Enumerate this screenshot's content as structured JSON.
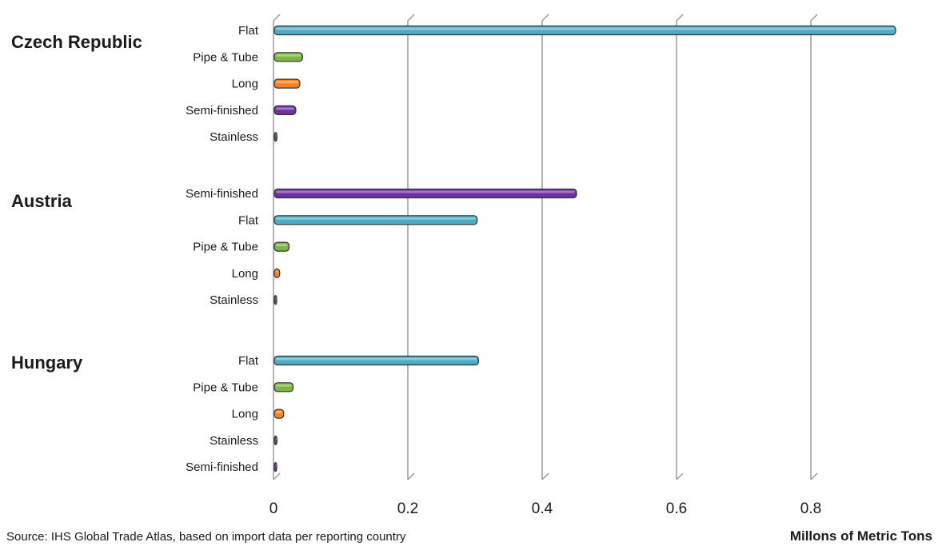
{
  "chart_data": {
    "type": "bar",
    "orientation": "horizontal",
    "groups": [
      {
        "name": "Czech Republic",
        "bars": [
          {
            "category": "Flat",
            "value": 0.925
          },
          {
            "category": "Pipe & Tube",
            "value": 0.042
          },
          {
            "category": "Long",
            "value": 0.038
          },
          {
            "category": "Semi-finished",
            "value": 0.032
          },
          {
            "category": "Stainless",
            "value": 0.004
          }
        ]
      },
      {
        "name": "Austria",
        "bars": [
          {
            "category": "Semi-finished",
            "value": 0.45
          },
          {
            "category": "Flat",
            "value": 0.302
          },
          {
            "category": "Pipe & Tube",
            "value": 0.022
          },
          {
            "category": "Long",
            "value": 0.008
          },
          {
            "category": "Stainless",
            "value": 0.003
          }
        ]
      },
      {
        "name": "Hungary",
        "bars": [
          {
            "category": "Flat",
            "value": 0.304
          },
          {
            "category": "Pipe & Tube",
            "value": 0.028
          },
          {
            "category": "Long",
            "value": 0.014
          },
          {
            "category": "Stainless",
            "value": 0.004
          },
          {
            "category": "Semi-finished",
            "value": 0.003
          }
        ]
      }
    ],
    "xlim": [
      0,
      1
    ],
    "xticks": [
      "0",
      "0.2",
      "0.4",
      "0.6",
      "0.8",
      "1"
    ],
    "xlabel": "Millons of Metric Tons",
    "grid": true,
    "category_colors": {
      "Flat": "#4bacc6",
      "Pipe & Tube": "#7bb543",
      "Long": "#f58220",
      "Semi-finished": "#7030a0",
      "Stainless": "#595959"
    }
  },
  "footer": {
    "source": "Source: IHS Global Trade Atlas, based on import data per reporting country"
  }
}
